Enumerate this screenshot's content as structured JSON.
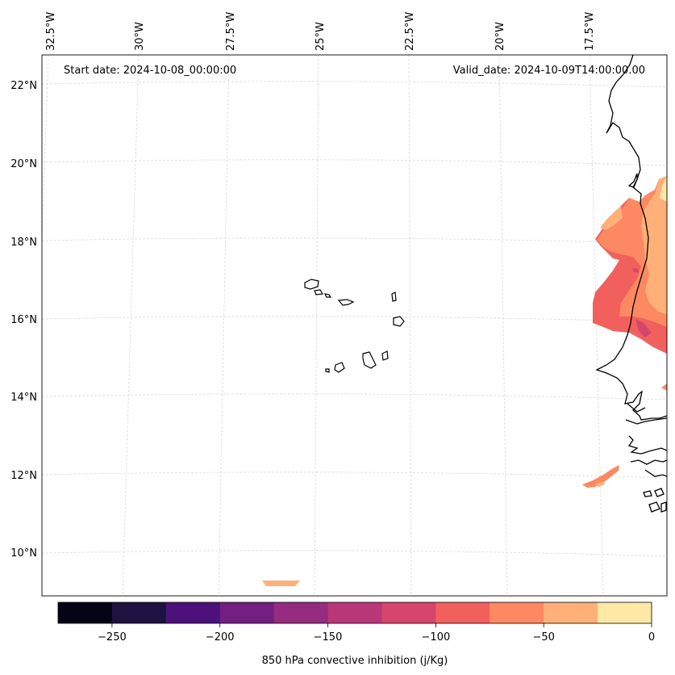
{
  "header": {
    "start_date": "Start date: 2024-10-08_00:00:00",
    "valid_date": "Valid_date: 2024-10-09T14:00:00.00"
  },
  "map": {
    "lon_labels": [
      "32.5°W",
      "30°W",
      "27.5°W",
      "25°W",
      "22.5°W",
      "20°W",
      "17.5°W"
    ],
    "lat_labels": [
      "22°N",
      "20°N",
      "18°N",
      "16°N",
      "14°N",
      "12°N",
      "10°N"
    ],
    "coastline_color": "#000000",
    "gridline_color": "#d9d9d9"
  },
  "colorbar": {
    "label": "850 hPa convective inhibition (j/Kg)",
    "ticks": [
      "−250",
      "−200",
      "−150",
      "−100",
      "−50",
      "0"
    ],
    "colors": [
      "#050416",
      "#1f1241",
      "#4c117a",
      "#721f81",
      "#952c80",
      "#b73779",
      "#d6456c",
      "#f1605d",
      "#fc8961",
      "#feb078",
      "#fde9a5"
    ]
  }
}
